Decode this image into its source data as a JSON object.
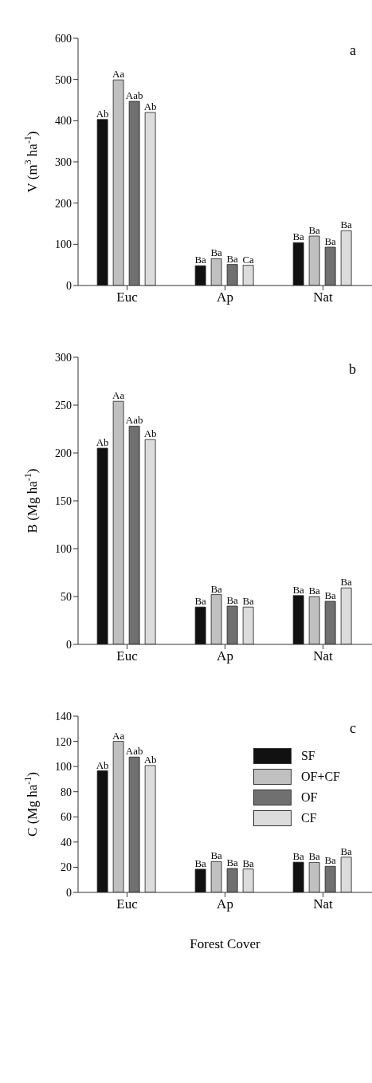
{
  "chart_data": [
    {
      "type": "bar",
      "ylabel": "V (m$^{3}$ ha$^{-1}$)",
      "categories": [
        "Euc",
        "Ap",
        "Nat"
      ],
      "ylim": [
        0,
        600
      ],
      "yticks": [
        0,
        100,
        200,
        300,
        400,
        500,
        600
      ],
      "grid": false,
      "legend": false,
      "annotations": [
        "a"
      ],
      "series": [
        {
          "color": "#111111",
          "values": [
            403,
            48,
            104
          ],
          "value_labels": [
            "Ab",
            "Ba",
            "Ba"
          ]
        },
        {
          "color": "#c0c0c0",
          "values": [
            499,
            65,
            120
          ],
          "value_labels": [
            "Aa",
            "Ba",
            "Ba"
          ]
        },
        {
          "color": "#707070",
          "values": [
            447,
            51,
            93
          ],
          "value_labels": [
            "Aab",
            "Ba",
            "Ba"
          ]
        },
        {
          "color": "#dcdcdc",
          "values": [
            420,
            49,
            133
          ],
          "value_labels": [
            "Ab",
            "Ca",
            "Ba"
          ]
        }
      ]
    },
    {
      "type": "bar",
      "ylabel": "B (Mg ha$^{-1}$)",
      "categories": [
        "Euc",
        "Ap",
        "Nat"
      ],
      "ylim": [
        0,
        300
      ],
      "yticks": [
        0,
        50,
        100,
        150,
        200,
        250,
        300
      ],
      "grid": false,
      "legend": false,
      "annotations": [
        "b"
      ],
      "series": [
        {
          "color": "#111111",
          "values": [
            205,
            39,
            51
          ],
          "value_labels": [
            "Ab",
            "Ba",
            "Ba"
          ]
        },
        {
          "color": "#c0c0c0",
          "values": [
            254,
            52,
            50
          ],
          "value_labels": [
            "Aa",
            "Ba",
            "Ba"
          ]
        },
        {
          "color": "#707070",
          "values": [
            228,
            40,
            45
          ],
          "value_labels": [
            "Aab",
            "Ba",
            "Ba"
          ]
        },
        {
          "color": "#dcdcdc",
          "values": [
            214,
            39,
            59
          ],
          "value_labels": [
            "Ab",
            "Ba",
            "Ba"
          ]
        }
      ]
    },
    {
      "type": "bar",
      "ylabel": "C (Mg ha$^{-1}$)",
      "xlabel": "Forest Cover",
      "categories": [
        "Euc",
        "Ap",
        "Nat"
      ],
      "ylim": [
        0,
        140
      ],
      "yticks": [
        0,
        20,
        40,
        60,
        80,
        100,
        120,
        140
      ],
      "grid": false,
      "legend": "top right",
      "annotations": [
        "c"
      ],
      "series": [
        {
          "name": "SF",
          "color": "#111111",
          "values": [
            96.6,
            18.4,
            24
          ],
          "value_labels": [
            "Ab",
            "Ba",
            "Ba"
          ]
        },
        {
          "name": "OF+CF",
          "color": "#c0c0c0",
          "values": [
            120,
            24.5,
            23.8
          ],
          "value_labels": [
            "Aa",
            "Ba",
            "Ba"
          ]
        },
        {
          "name": "OF",
          "color": "#707070",
          "values": [
            107.5,
            19,
            20.7
          ],
          "value_labels": [
            "Aab",
            "Ba",
            "Ba"
          ]
        },
        {
          "name": "CF",
          "color": "#dcdcdc",
          "values": [
            100.8,
            18.6,
            28
          ],
          "value_labels": [
            "Ab",
            "Ba",
            "Ba"
          ]
        }
      ]
    }
  ]
}
